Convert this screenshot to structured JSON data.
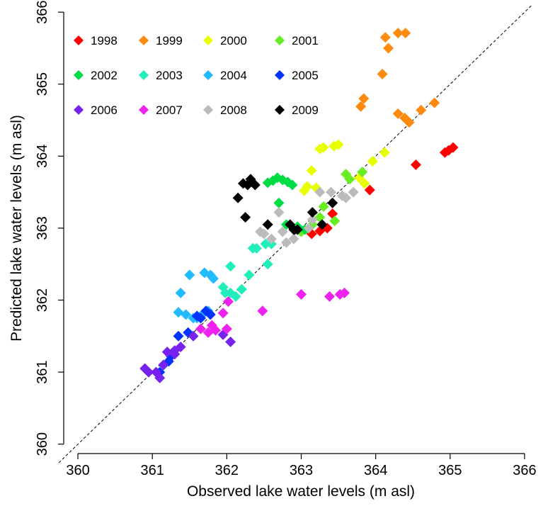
{
  "chart_data": {
    "type": "scatter",
    "x_label": "Observed lake water levels (m asl)",
    "y_label": "Predicted lake water levels (m asl)",
    "xlim": [
      359.8,
      366.2
    ],
    "ylim": [
      359.8,
      366.1
    ],
    "xticks": [
      360,
      361,
      362,
      363,
      364,
      365,
      366
    ],
    "yticks": [
      360,
      361,
      362,
      363,
      364,
      365,
      366
    ],
    "legend_position": "top-left",
    "series": [
      {
        "name": "1998",
        "color": "#ff0000",
        "x": [
          363.92,
          364.54,
          364.93,
          364.98,
          365.04,
          363.14,
          363.25,
          363.35,
          363.42
        ],
        "values": [
          363.53,
          363.88,
          364.05,
          364.08,
          364.12,
          362.92,
          362.96,
          363.0,
          363.2
        ]
      },
      {
        "name": "1999",
        "color": "#ff8a10",
        "x": [
          364.13,
          364.17,
          364.3,
          364.4,
          364.09,
          363.84,
          363.8,
          364.3,
          364.45,
          364.39,
          364.61,
          364.79
        ],
        "values": [
          365.65,
          365.5,
          365.71,
          365.71,
          365.14,
          364.8,
          364.69,
          364.59,
          364.47,
          364.53,
          364.64,
          364.74
        ]
      },
      {
        "name": "2000",
        "color": "#e8ff00",
        "x": [
          363.25,
          363.3,
          363.44,
          363.5,
          363.14,
          363.2,
          363.04,
          363.08,
          364.12,
          363.96,
          363.78,
          363.85
        ],
        "values": [
          364.1,
          364.12,
          364.14,
          364.16,
          363.8,
          363.56,
          363.52,
          363.58,
          364.05,
          363.93,
          363.7,
          363.62
        ]
      },
      {
        "name": "2001",
        "color": "#66ee22",
        "x": [
          363.6,
          363.65,
          363.82,
          363.3,
          363.25,
          363.45,
          363.0,
          363.15
        ],
        "values": [
          363.75,
          363.68,
          363.78,
          363.3,
          363.15,
          363.1,
          362.95,
          363.05
        ]
      },
      {
        "name": "2002",
        "color": "#00dd44",
        "x": [
          362.55,
          362.62,
          362.68,
          362.75,
          362.82,
          362.88,
          362.7,
          362.95,
          363.05,
          362.8
        ],
        "values": [
          363.63,
          363.66,
          363.7,
          363.67,
          363.64,
          363.6,
          363.35,
          363.02,
          362.98,
          363.05
        ]
      },
      {
        "name": "2003",
        "color": "#22eebb",
        "x": [
          361.95,
          362.05,
          362.12,
          362.2,
          362.3,
          362.35,
          362.4,
          362.52,
          362.55,
          362.6,
          362.05,
          361.98
        ],
        "values": [
          362.18,
          362.1,
          362.05,
          362.15,
          362.35,
          362.72,
          362.72,
          362.78,
          362.5,
          362.78,
          362.47,
          362.1
        ]
      },
      {
        "name": "2004",
        "color": "#22bbff",
        "x": [
          361.38,
          361.5,
          361.35,
          361.55,
          361.65,
          361.7,
          361.78,
          361.82,
          361.75,
          361.6,
          361.45
        ],
        "values": [
          362.1,
          362.35,
          361.83,
          361.75,
          361.78,
          362.38,
          362.35,
          362.3,
          361.85,
          361.75,
          361.8
        ]
      },
      {
        "name": "2005",
        "color": "#0033ff",
        "x": [
          361.1,
          361.15,
          361.22,
          361.35,
          361.48,
          361.6,
          361.72,
          361.78,
          361.65,
          361.25
        ],
        "values": [
          361.0,
          361.1,
          361.15,
          361.5,
          361.55,
          361.78,
          361.85,
          361.8,
          361.75,
          361.22
        ]
      },
      {
        "name": "2006",
        "color": "#7722ee",
        "x": [
          360.9,
          360.95,
          361.05,
          361.1,
          361.15,
          361.2,
          361.3,
          361.38,
          361.55,
          361.95,
          362.05,
          361.3
        ],
        "values": [
          361.05,
          361.0,
          361.0,
          360.92,
          361.1,
          361.28,
          361.25,
          361.35,
          361.5,
          361.52,
          361.42,
          361.3
        ]
      },
      {
        "name": "2007",
        "color": "#ee22ee",
        "x": [
          361.65,
          361.75,
          361.8,
          361.85,
          361.95,
          362.02,
          362.0,
          362.48,
          363.0,
          363.38,
          363.52,
          363.58
        ],
        "values": [
          361.6,
          361.55,
          361.65,
          361.58,
          361.82,
          361.98,
          361.6,
          361.85,
          362.08,
          362.05,
          362.08,
          362.1
        ]
      },
      {
        "name": "2008",
        "color": "#bbbbbb",
        "x": [
          362.45,
          362.5,
          362.6,
          362.7,
          362.75,
          362.8,
          362.9,
          363.1,
          363.15,
          363.25,
          363.4,
          363.55,
          363.6,
          363.7
        ],
        "values": [
          362.95,
          362.92,
          362.85,
          363.22,
          362.95,
          362.8,
          362.85,
          363.0,
          363.12,
          363.5,
          363.5,
          363.45,
          363.42,
          363.5
        ]
      },
      {
        "name": "2009",
        "color": "#000000",
        "x": [
          362.15,
          362.22,
          362.28,
          362.32,
          362.38,
          362.25,
          362.55,
          362.85,
          362.9,
          362.95,
          363.15,
          363.28,
          363.42
        ],
        "values": [
          363.42,
          363.62,
          363.6,
          363.68,
          363.6,
          363.15,
          363.05,
          363.05,
          362.98,
          362.98,
          363.22,
          363.05,
          363.35
        ]
      }
    ]
  }
}
